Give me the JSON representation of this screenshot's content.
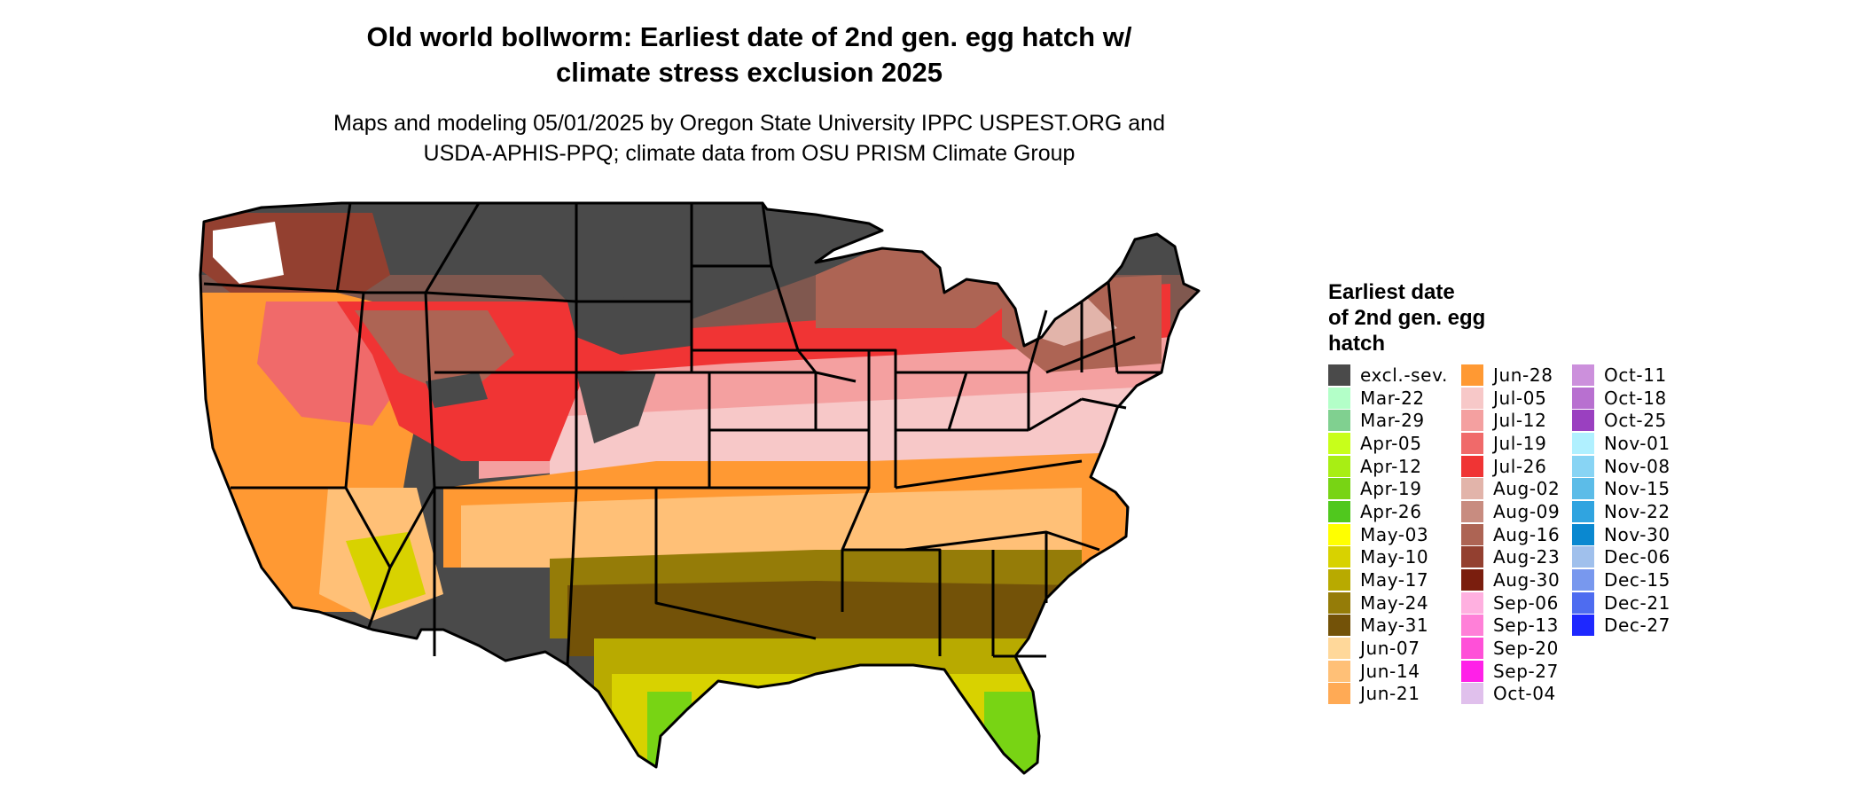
{
  "figure": {
    "title_line1": "Old world bollworm: Earliest date of 2nd gen. egg hatch w/",
    "title_line2": "climate stress exclusion 2025",
    "subtitle_line1": "Maps and modeling 05/01/2025 by Oregon State University IPPC USPEST.ORG and",
    "subtitle_line2": "USDA-APHIS-PPQ; climate data from OSU PRISM Climate Group"
  },
  "legend": {
    "title_line1": "Earliest date",
    "title_line2": "of 2nd gen. egg",
    "title_line3": "hatch",
    "columns": [
      [
        {
          "label": "excl.-sev.",
          "color": "#4a4a4a"
        },
        {
          "label": "Mar-22",
          "color": "#b3ffc8"
        },
        {
          "label": "Mar-29",
          "color": "#80d090"
        },
        {
          "label": "Apr-05",
          "color": "#c8ff1a"
        },
        {
          "label": "Apr-12",
          "color": "#a8ee14"
        },
        {
          "label": "Apr-19",
          "color": "#78d414"
        },
        {
          "label": "Apr-26",
          "color": "#50c81e"
        },
        {
          "label": "May-03",
          "color": "#ffff00"
        },
        {
          "label": "May-10",
          "color": "#d8d200"
        },
        {
          "label": "May-17",
          "color": "#b8aa00"
        },
        {
          "label": "May-24",
          "color": "#957c08"
        },
        {
          "label": "May-31",
          "color": "#735208"
        },
        {
          "label": "Jun-07",
          "color": "#ffd89a"
        },
        {
          "label": "Jun-14",
          "color": "#ffc077"
        },
        {
          "label": "Jun-21",
          "color": "#ffaa55"
        }
      ],
      [
        {
          "label": "Jun-28",
          "color": "#ff9933"
        },
        {
          "label": "Jul-05",
          "color": "#f7c8c8"
        },
        {
          "label": "Jul-12",
          "color": "#f4a0a0"
        },
        {
          "label": "Jul-19",
          "color": "#f06a6a"
        },
        {
          "label": "Jul-26",
          "color": "#f03434"
        },
        {
          "label": "Aug-02",
          "color": "#e2b4aa"
        },
        {
          "label": "Aug-09",
          "color": "#c88c80"
        },
        {
          "label": "Aug-16",
          "color": "#ad6454"
        },
        {
          "label": "Aug-23",
          "color": "#934030"
        },
        {
          "label": "Aug-30",
          "color": "#7a1e0e"
        },
        {
          "label": "Sep-06",
          "color": "#ffb0e0"
        },
        {
          "label": "Sep-13",
          "color": "#ff80d8"
        },
        {
          "label": "Sep-20",
          "color": "#ff50d8"
        },
        {
          "label": "Sep-27",
          "color": "#ff20e8"
        },
        {
          "label": "Oct-04",
          "color": "#e0c0ec"
        }
      ],
      [
        {
          "label": "Oct-11",
          "color": "#cc90dc"
        },
        {
          "label": "Oct-18",
          "color": "#b870d0"
        },
        {
          "label": "Oct-25",
          "color": "#9a40c0"
        },
        {
          "label": "Nov-01",
          "color": "#b0f0ff"
        },
        {
          "label": "Nov-08",
          "color": "#88d4f4"
        },
        {
          "label": "Nov-15",
          "color": "#5cbce8"
        },
        {
          "label": "Nov-22",
          "color": "#30a4e0"
        },
        {
          "label": "Nov-30",
          "color": "#0a88d0"
        },
        {
          "label": "Dec-06",
          "color": "#a0c0ec"
        },
        {
          "label": "Dec-15",
          "color": "#7898ee"
        },
        {
          "label": "Dec-21",
          "color": "#4e6cf0"
        },
        {
          "label": "Dec-27",
          "color": "#1e28ff"
        }
      ]
    ]
  }
}
